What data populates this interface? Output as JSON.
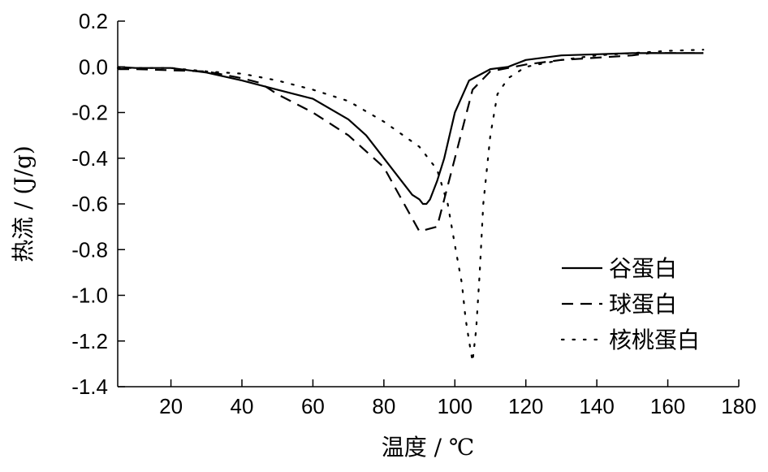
{
  "chart_data": {
    "type": "line",
    "xlabel": "温度 / ℃",
    "ylabel": "热流 / (J/g)",
    "xlim": [
      5,
      180
    ],
    "ylim": [
      -1.4,
      0.2
    ],
    "xticks": [
      20,
      40,
      60,
      80,
      100,
      120,
      140,
      160,
      180
    ],
    "xtick_labels": [
      "20",
      "40",
      "60",
      "80",
      "100",
      "120",
      "140",
      "160",
      "180"
    ],
    "yticks": [
      0.2,
      0.0,
      -0.2,
      -0.4,
      -0.6,
      -0.8,
      -1.0,
      -1.2,
      -1.4
    ],
    "ytick_labels": [
      "0.2",
      "0.0",
      "-0.2",
      "-0.4",
      "-0.6",
      "-0.8",
      "-1.0",
      "-1.2",
      "-1.4"
    ],
    "grid": false,
    "legend_position": "bottom-right",
    "series": [
      {
        "name": "谷蛋白",
        "line_style": "solid",
        "x": [
          5,
          10,
          20,
          30,
          40,
          50,
          60,
          70,
          75,
          80,
          85,
          88,
          90,
          91,
          92,
          93,
          95,
          97,
          100,
          104,
          110,
          115,
          120,
          130,
          140,
          150,
          160,
          170
        ],
        "y": [
          0.0,
          -0.005,
          -0.005,
          -0.025,
          -0.06,
          -0.1,
          -0.14,
          -0.23,
          -0.3,
          -0.4,
          -0.5,
          -0.56,
          -0.58,
          -0.6,
          -0.6,
          -0.58,
          -0.5,
          -0.4,
          -0.2,
          -0.06,
          -0.01,
          0.0,
          0.03,
          0.05,
          0.055,
          0.06,
          0.06,
          0.06
        ]
      },
      {
        "name": "球蛋白",
        "line_style": "dashed",
        "x": [
          5,
          10,
          20,
          30,
          40,
          45,
          50,
          60,
          70,
          80,
          85,
          90,
          95,
          97,
          100,
          102,
          105,
          110,
          115,
          120,
          130,
          140,
          150,
          155,
          160,
          170
        ],
        "y": [
          -0.01,
          -0.01,
          -0.015,
          -0.02,
          -0.05,
          -0.07,
          -0.12,
          -0.2,
          -0.3,
          -0.44,
          -0.58,
          -0.72,
          -0.7,
          -0.58,
          -0.4,
          -0.28,
          -0.1,
          -0.02,
          -0.005,
          0.01,
          0.03,
          0.04,
          0.05,
          0.06,
          0.06,
          0.06
        ]
      },
      {
        "name": "核桃蛋白",
        "line_style": "dotted",
        "x": [
          5,
          10,
          20,
          30,
          40,
          50,
          60,
          70,
          80,
          90,
          95,
          98,
          100,
          102,
          103,
          104,
          105,
          106,
          107,
          108,
          110,
          112,
          115,
          120,
          130,
          140,
          150,
          160,
          170
        ],
        "y": [
          -0.005,
          -0.005,
          -0.005,
          -0.02,
          -0.03,
          -0.06,
          -0.1,
          -0.15,
          -0.24,
          -0.35,
          -0.45,
          -0.6,
          -0.78,
          -0.95,
          -1.1,
          -1.2,
          -1.29,
          -1.15,
          -0.9,
          -0.6,
          -0.3,
          -0.12,
          -0.05,
          0.0,
          0.03,
          0.05,
          0.06,
          0.07,
          0.075
        ]
      }
    ]
  }
}
